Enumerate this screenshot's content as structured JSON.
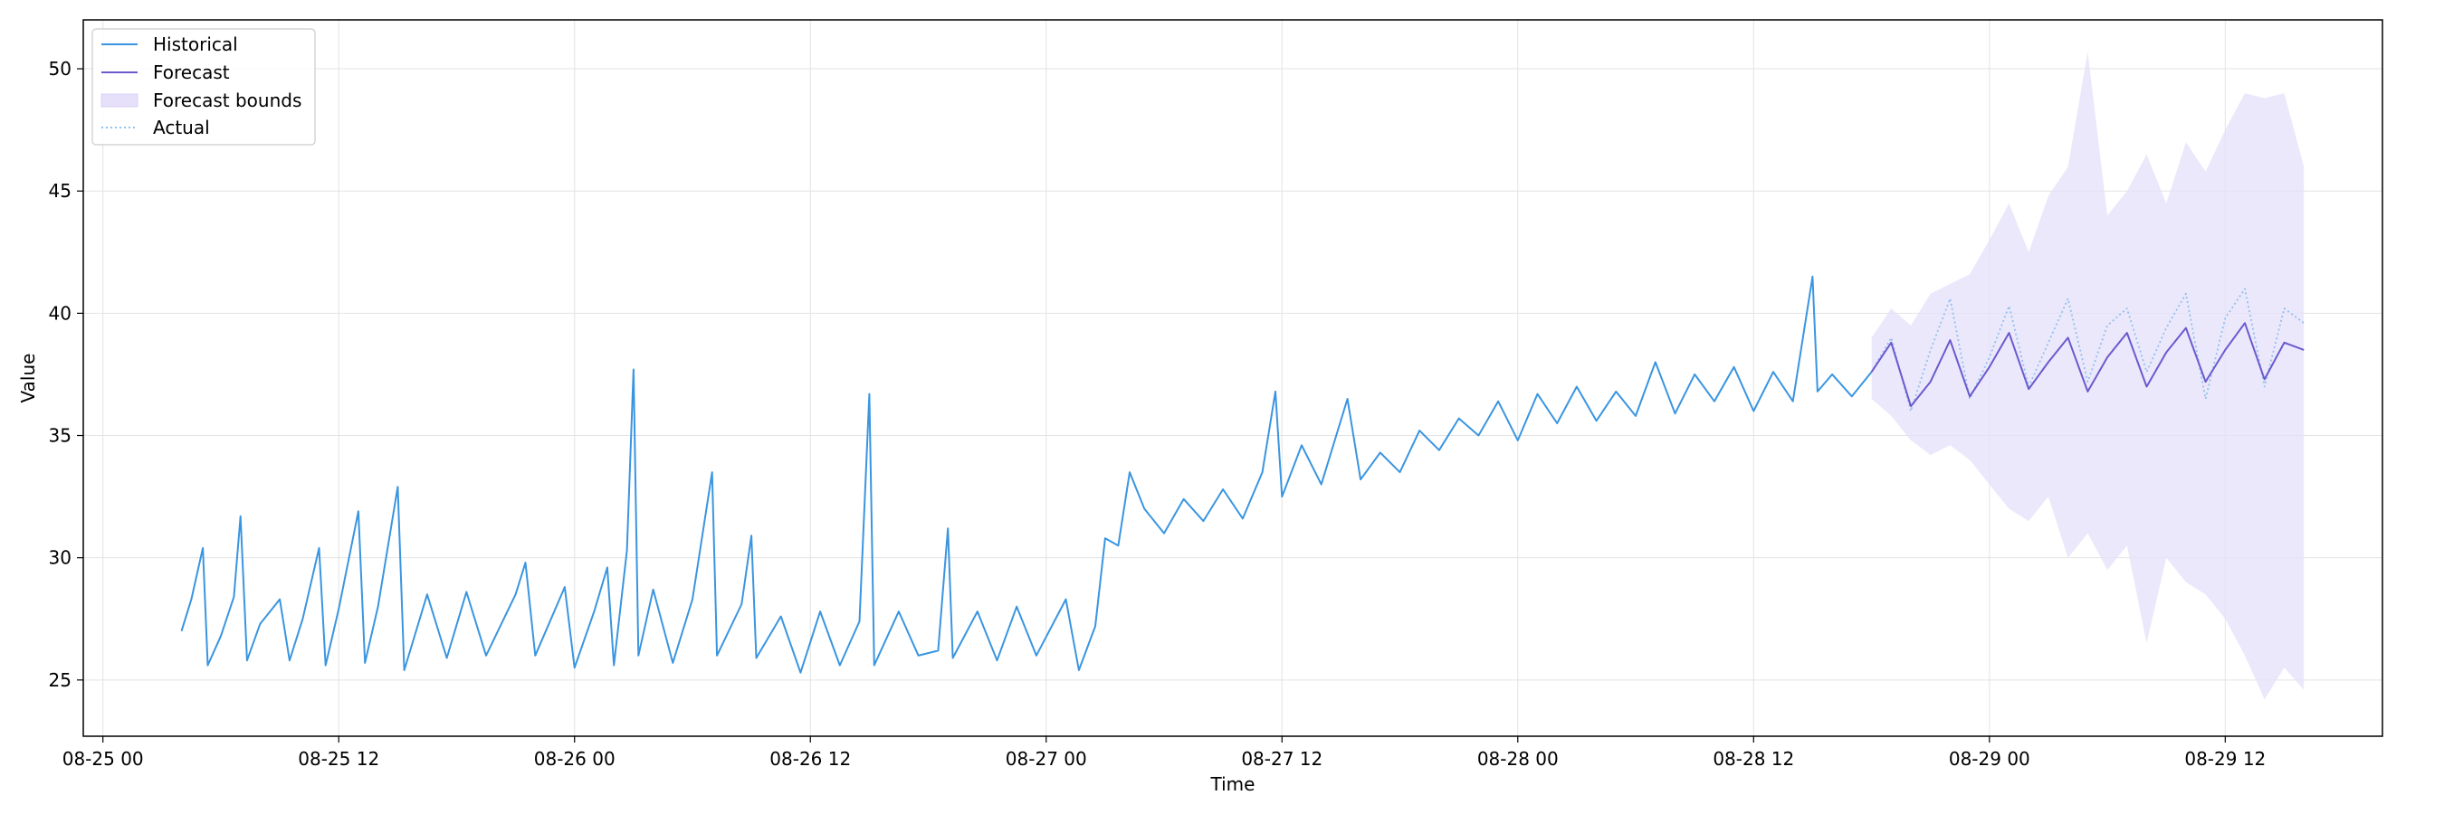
{
  "chart_data": {
    "type": "line",
    "title": "",
    "xlabel": "Time",
    "ylabel": "Value",
    "x_range": [
      "2024-08-24T23:00",
      "2024-08-29T20:00"
    ],
    "ylim": [
      22.7,
      52.0
    ],
    "grid": true,
    "legend_position": "top-left",
    "x_tick_labels": [
      "08-25 00",
      "08-25 12",
      "08-26 00",
      "08-26 12",
      "08-27 00",
      "08-27 12",
      "08-28 00",
      "08-28 12",
      "08-29 00",
      "08-29 12"
    ],
    "x_ticks": [
      "2024-08-25T00:00",
      "2024-08-25T12:00",
      "2024-08-26T00:00",
      "2024-08-26T12:00",
      "2024-08-27T00:00",
      "2024-08-27T12:00",
      "2024-08-28T00:00",
      "2024-08-28T12:00",
      "2024-08-29T00:00",
      "2024-08-29T12:00"
    ],
    "y_tick_labels": [
      "25",
      "30",
      "35",
      "40",
      "45",
      "50"
    ],
    "y_ticks": [
      25,
      30,
      35,
      40,
      45,
      50
    ],
    "series": [
      {
        "name": "Historical",
        "color": "#3a95e0",
        "style": "solid",
        "points": [
          [
            "2024-08-25T04:00",
            27.0
          ],
          [
            "2024-08-25T04:30",
            28.3
          ],
          [
            "2024-08-25T05:05",
            30.4
          ],
          [
            "2024-08-25T05:20",
            25.6
          ],
          [
            "2024-08-25T06:00",
            26.8
          ],
          [
            "2024-08-25T06:40",
            28.4
          ],
          [
            "2024-08-25T07:00",
            31.7
          ],
          [
            "2024-08-25T07:20",
            25.8
          ],
          [
            "2024-08-25T08:00",
            27.3
          ],
          [
            "2024-08-25T09:00",
            28.3
          ],
          [
            "2024-08-25T09:30",
            25.8
          ],
          [
            "2024-08-25T10:10",
            27.5
          ],
          [
            "2024-08-25T11:00",
            30.4
          ],
          [
            "2024-08-25T11:20",
            25.6
          ],
          [
            "2024-08-25T12:00",
            27.9
          ],
          [
            "2024-08-25T13:00",
            31.9
          ],
          [
            "2024-08-25T13:20",
            25.7
          ],
          [
            "2024-08-25T14:00",
            28.0
          ],
          [
            "2024-08-25T15:00",
            32.9
          ],
          [
            "2024-08-25T15:20",
            25.4
          ],
          [
            "2024-08-25T16:30",
            28.5
          ],
          [
            "2024-08-25T17:30",
            25.9
          ],
          [
            "2024-08-25T18:30",
            28.6
          ],
          [
            "2024-08-25T19:30",
            26.0
          ],
          [
            "2024-08-25T21:00",
            28.5
          ],
          [
            "2024-08-25T21:30",
            29.8
          ],
          [
            "2024-08-25T22:00",
            26.0
          ],
          [
            "2024-08-25T23:30",
            28.8
          ],
          [
            "2024-08-26T00:00",
            25.5
          ],
          [
            "2024-08-26T01:00",
            27.8
          ],
          [
            "2024-08-26T01:40",
            29.6
          ],
          [
            "2024-08-26T02:00",
            25.6
          ],
          [
            "2024-08-26T02:40",
            30.3
          ],
          [
            "2024-08-26T03:00",
            37.7
          ],
          [
            "2024-08-26T03:15",
            26.0
          ],
          [
            "2024-08-26T04:00",
            28.7
          ],
          [
            "2024-08-26T05:00",
            25.7
          ],
          [
            "2024-08-26T06:00",
            28.3
          ],
          [
            "2024-08-26T07:00",
            33.5
          ],
          [
            "2024-08-26T07:15",
            26.0
          ],
          [
            "2024-08-26T08:30",
            28.1
          ],
          [
            "2024-08-26T09:00",
            30.9
          ],
          [
            "2024-08-26T09:15",
            25.9
          ],
          [
            "2024-08-26T10:30",
            27.6
          ],
          [
            "2024-08-26T11:30",
            25.3
          ],
          [
            "2024-08-26T12:30",
            27.8
          ],
          [
            "2024-08-26T13:30",
            25.6
          ],
          [
            "2024-08-26T14:30",
            27.4
          ],
          [
            "2024-08-26T15:00",
            36.7
          ],
          [
            "2024-08-26T15:15",
            25.6
          ],
          [
            "2024-08-26T16:30",
            27.8
          ],
          [
            "2024-08-26T17:30",
            26.0
          ],
          [
            "2024-08-26T18:30",
            26.2
          ],
          [
            "2024-08-26T19:00",
            31.2
          ],
          [
            "2024-08-26T19:15",
            25.9
          ],
          [
            "2024-08-26T20:30",
            27.8
          ],
          [
            "2024-08-26T21:30",
            25.8
          ],
          [
            "2024-08-26T22:30",
            28.0
          ],
          [
            "2024-08-26T23:30",
            26.0
          ],
          [
            "2024-08-27T01:00",
            28.3
          ],
          [
            "2024-08-27T01:40",
            25.4
          ],
          [
            "2024-08-27T02:30",
            27.2
          ],
          [
            "2024-08-27T03:00",
            30.8
          ],
          [
            "2024-08-27T03:40",
            30.5
          ],
          [
            "2024-08-27T04:15",
            33.5
          ],
          [
            "2024-08-27T05:00",
            32.0
          ],
          [
            "2024-08-27T06:00",
            31.0
          ],
          [
            "2024-08-27T07:00",
            32.4
          ],
          [
            "2024-08-27T08:00",
            31.5
          ],
          [
            "2024-08-27T09:00",
            32.8
          ],
          [
            "2024-08-27T10:00",
            31.6
          ],
          [
            "2024-08-27T11:00",
            33.5
          ],
          [
            "2024-08-27T11:40",
            36.8
          ],
          [
            "2024-08-27T12:00",
            32.5
          ],
          [
            "2024-08-27T13:00",
            34.6
          ],
          [
            "2024-08-27T14:00",
            33.0
          ],
          [
            "2024-08-27T15:20",
            36.5
          ],
          [
            "2024-08-27T16:00",
            33.2
          ],
          [
            "2024-08-27T17:00",
            34.3
          ],
          [
            "2024-08-27T18:00",
            33.5
          ],
          [
            "2024-08-27T19:00",
            35.2
          ],
          [
            "2024-08-27T20:00",
            34.4
          ],
          [
            "2024-08-27T21:00",
            35.7
          ],
          [
            "2024-08-27T22:00",
            35.0
          ],
          [
            "2024-08-27T23:00",
            36.4
          ],
          [
            "2024-08-28T00:00",
            34.8
          ],
          [
            "2024-08-28T01:00",
            36.7
          ],
          [
            "2024-08-28T02:00",
            35.5
          ],
          [
            "2024-08-28T03:00",
            37.0
          ],
          [
            "2024-08-28T04:00",
            35.6
          ],
          [
            "2024-08-28T05:00",
            36.8
          ],
          [
            "2024-08-28T06:00",
            35.8
          ],
          [
            "2024-08-28T07:00",
            38.0
          ],
          [
            "2024-08-28T08:00",
            35.9
          ],
          [
            "2024-08-28T09:00",
            37.5
          ],
          [
            "2024-08-28T10:00",
            36.4
          ],
          [
            "2024-08-28T11:00",
            37.8
          ],
          [
            "2024-08-28T12:00",
            36.0
          ],
          [
            "2024-08-28T13:00",
            37.6
          ],
          [
            "2024-08-28T14:00",
            36.4
          ],
          [
            "2024-08-28T15:00",
            41.5
          ],
          [
            "2024-08-28T15:15",
            36.8
          ],
          [
            "2024-08-28T16:00",
            37.5
          ],
          [
            "2024-08-28T17:00",
            36.6
          ],
          [
            "2024-08-28T18:00",
            37.6
          ]
        ]
      },
      {
        "name": "Forecast",
        "color": "#6a5acd",
        "style": "solid",
        "points": [
          [
            "2024-08-28T18:00",
            37.6
          ],
          [
            "2024-08-28T19:00",
            38.8
          ],
          [
            "2024-08-28T20:00",
            36.2
          ],
          [
            "2024-08-28T21:00",
            37.2
          ],
          [
            "2024-08-28T22:00",
            38.9
          ],
          [
            "2024-08-28T23:00",
            36.6
          ],
          [
            "2024-08-29T00:00",
            37.8
          ],
          [
            "2024-08-29T01:00",
            39.2
          ],
          [
            "2024-08-29T02:00",
            36.9
          ],
          [
            "2024-08-29T03:00",
            38.0
          ],
          [
            "2024-08-29T04:00",
            39.0
          ],
          [
            "2024-08-29T05:00",
            36.8
          ],
          [
            "2024-08-29T06:00",
            38.2
          ],
          [
            "2024-08-29T07:00",
            39.2
          ],
          [
            "2024-08-29T08:00",
            37.0
          ],
          [
            "2024-08-29T09:00",
            38.4
          ],
          [
            "2024-08-29T10:00",
            39.4
          ],
          [
            "2024-08-29T11:00",
            37.2
          ],
          [
            "2024-08-29T12:00",
            38.5
          ],
          [
            "2024-08-29T13:00",
            39.6
          ],
          [
            "2024-08-29T14:00",
            37.3
          ],
          [
            "2024-08-29T15:00",
            38.8
          ],
          [
            "2024-08-29T16:00",
            38.5
          ]
        ]
      },
      {
        "name": "Actual",
        "color": "#8ec0f0",
        "style": "dotted",
        "points": [
          [
            "2024-08-28T18:00",
            37.6
          ],
          [
            "2024-08-28T19:00",
            39.0
          ],
          [
            "2024-08-28T20:00",
            36.0
          ],
          [
            "2024-08-28T21:00",
            38.5
          ],
          [
            "2024-08-28T22:00",
            40.6
          ],
          [
            "2024-08-28T23:00",
            36.5
          ],
          [
            "2024-08-29T00:00",
            38.2
          ],
          [
            "2024-08-29T01:00",
            40.3
          ],
          [
            "2024-08-29T02:00",
            37.0
          ],
          [
            "2024-08-29T03:00",
            38.8
          ],
          [
            "2024-08-29T04:00",
            40.6
          ],
          [
            "2024-08-29T05:00",
            37.2
          ],
          [
            "2024-08-29T06:00",
            39.5
          ],
          [
            "2024-08-29T07:00",
            40.2
          ],
          [
            "2024-08-29T08:00",
            37.6
          ],
          [
            "2024-08-29T09:00",
            39.4
          ],
          [
            "2024-08-29T10:00",
            40.8
          ],
          [
            "2024-08-29T11:00",
            36.5
          ],
          [
            "2024-08-29T12:00",
            39.8
          ],
          [
            "2024-08-29T13:00",
            41.0
          ],
          [
            "2024-08-29T14:00",
            37.0
          ],
          [
            "2024-08-29T15:00",
            40.2
          ],
          [
            "2024-08-29T16:00",
            39.6
          ]
        ]
      }
    ],
    "bounds": {
      "name": "Forecast bounds",
      "color": "#e6e0fa",
      "points": [
        [
          "2024-08-28T18:00",
          36.5,
          39.0
        ],
        [
          "2024-08-28T19:00",
          35.8,
          40.2
        ],
        [
          "2024-08-28T20:00",
          34.8,
          39.5
        ],
        [
          "2024-08-28T21:00",
          34.2,
          40.8
        ],
        [
          "2024-08-28T22:00",
          34.6,
          41.2
        ],
        [
          "2024-08-28T23:00",
          34.0,
          41.6
        ],
        [
          "2024-08-29T00:00",
          33.0,
          43.0
        ],
        [
          "2024-08-29T01:00",
          32.0,
          44.5
        ],
        [
          "2024-08-29T02:00",
          31.5,
          42.5
        ],
        [
          "2024-08-29T03:00",
          32.5,
          44.8
        ],
        [
          "2024-08-29T04:00",
          30.0,
          46.0
        ],
        [
          "2024-08-29T05:00",
          31.0,
          50.7
        ],
        [
          "2024-08-29T06:00",
          29.5,
          44.0
        ],
        [
          "2024-08-29T07:00",
          30.5,
          45.0
        ],
        [
          "2024-08-29T08:00",
          26.5,
          46.5
        ],
        [
          "2024-08-29T09:00",
          30.0,
          44.5
        ],
        [
          "2024-08-29T10:00",
          29.0,
          47.0
        ],
        [
          "2024-08-29T11:00",
          28.5,
          45.8
        ],
        [
          "2024-08-29T12:00",
          27.5,
          47.5
        ],
        [
          "2024-08-29T13:00",
          26.0,
          49.0
        ],
        [
          "2024-08-29T14:00",
          24.2,
          48.8
        ],
        [
          "2024-08-29T15:00",
          25.5,
          49.0
        ],
        [
          "2024-08-29T16:00",
          24.6,
          46.0
        ]
      ]
    }
  }
}
